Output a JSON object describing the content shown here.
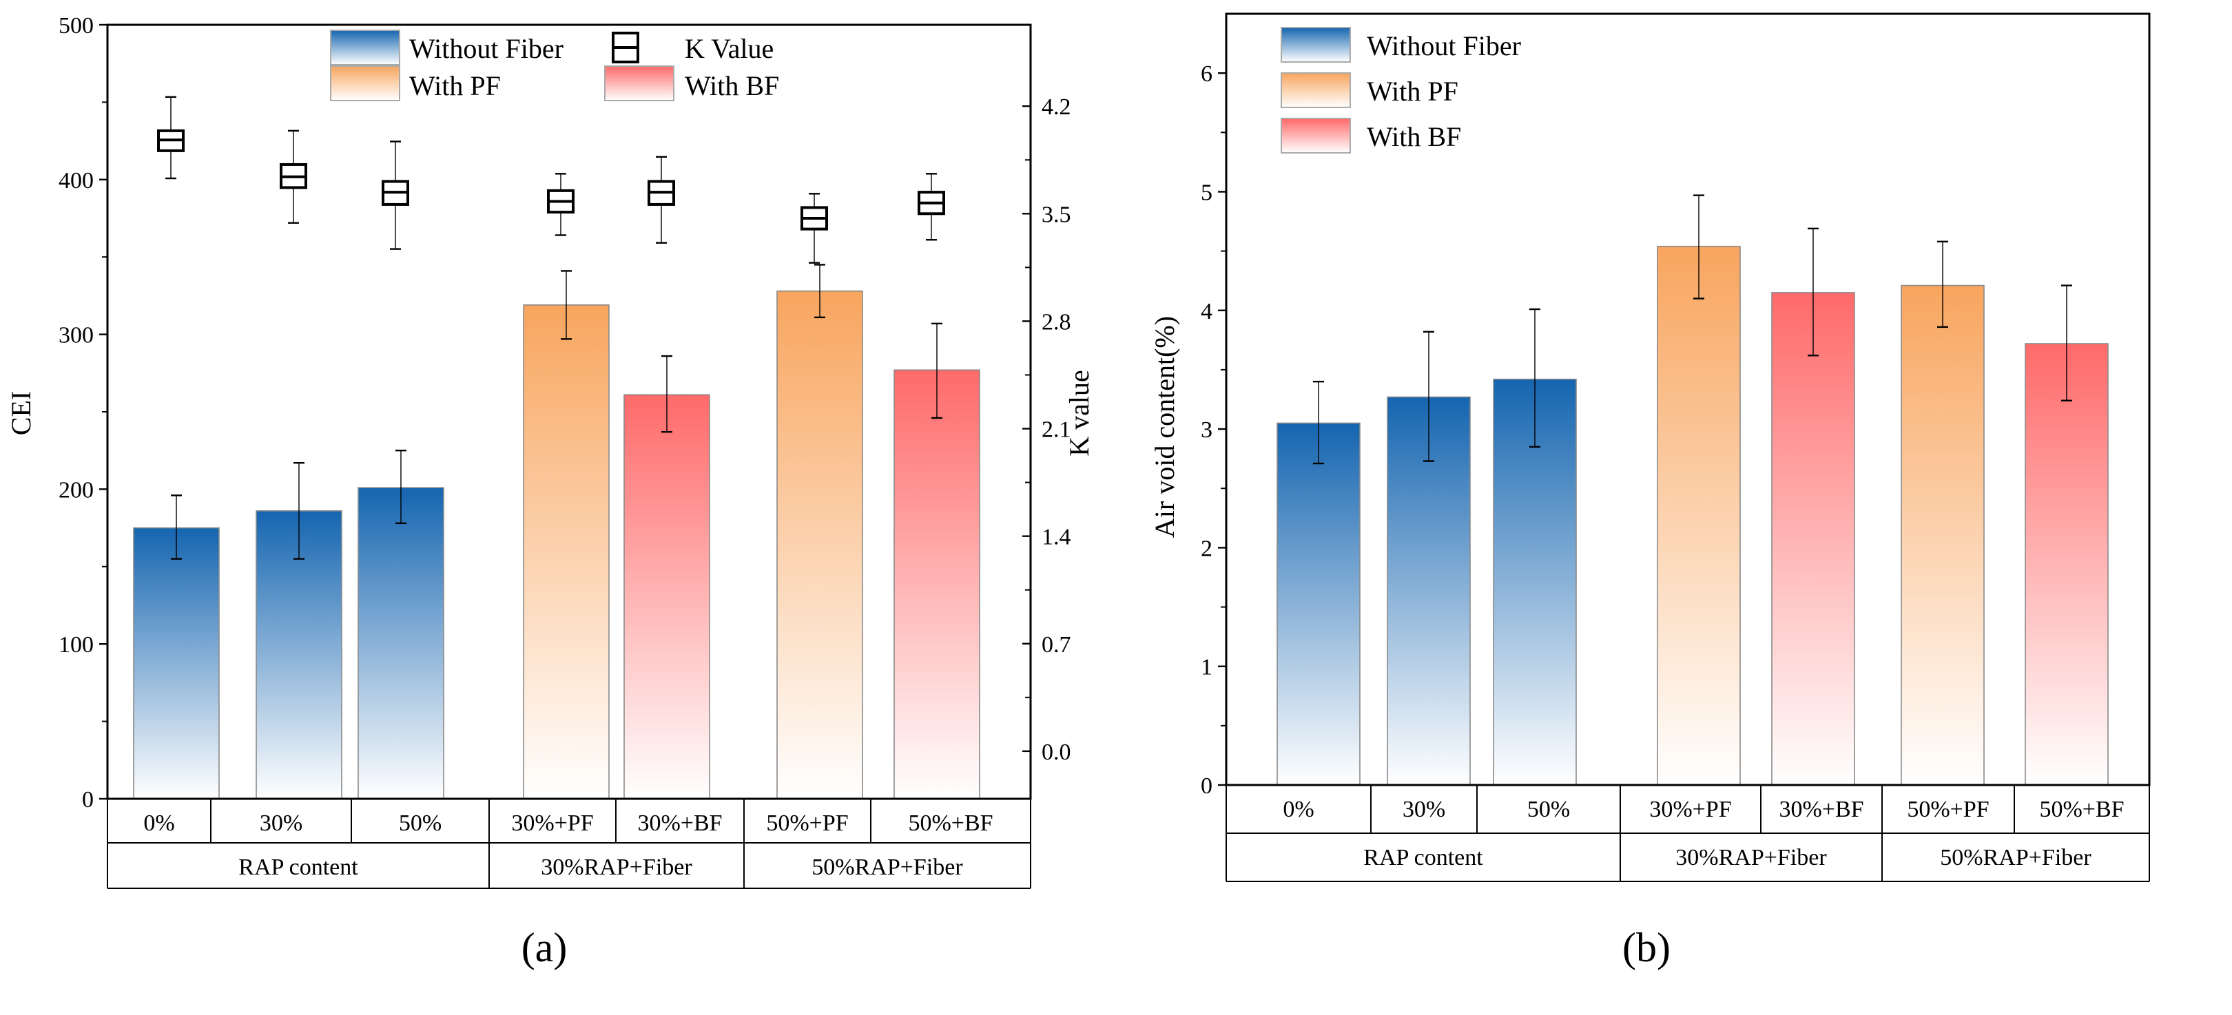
{
  "colors": {
    "without_fiber": "#1565b0",
    "with_pf": "#f8a55e",
    "with_bf": "#ff6a6a"
  },
  "chart_data": [
    {
      "type": "bar",
      "caption": "(a)",
      "ylabel": "CEI",
      "y2label": "K value",
      "ylim": [
        0,
        500
      ],
      "yticks": [
        0,
        100,
        200,
        300,
        400,
        500
      ],
      "y2lim": [
        -0.31,
        4.73
      ],
      "y2ticks": [
        "0.0",
        "0.7",
        "1.4",
        "2.1",
        "2.8",
        "3.5",
        "4.2"
      ],
      "categories": [
        "0%",
        "30%",
        "50%",
        "30%+PF",
        "30%+BF",
        "50%+PF",
        "50%+BF"
      ],
      "groups": [
        {
          "label": "RAP content",
          "span": 3
        },
        {
          "label": "30%RAP+Fiber",
          "span": 2
        },
        {
          "label": "50%RAP+Fiber",
          "span": 2
        }
      ],
      "legend": {
        "placement": "top-center",
        "entries": [
          "Without Fiber",
          "K Value",
          "With PF",
          "With BF"
        ]
      },
      "series_type": [
        "without_fiber",
        "without_fiber",
        "without_fiber",
        "with_pf",
        "with_bf",
        "with_pf",
        "with_bf"
      ],
      "values": [
        175,
        186,
        201,
        319,
        261,
        328,
        277
      ],
      "err_low": [
        155,
        155,
        178,
        297,
        237,
        311,
        246
      ],
      "err_high": [
        196,
        217,
        225,
        341,
        286,
        345,
        307
      ],
      "k_value": {
        "median": [
          3.98,
          3.74,
          3.64,
          3.58,
          3.64,
          3.47,
          3.57
        ],
        "q1": [
          3.91,
          3.67,
          3.56,
          3.51,
          3.56,
          3.4,
          3.5
        ],
        "q3": [
          4.04,
          3.82,
          3.71,
          3.65,
          3.71,
          3.54,
          3.64
        ],
        "min": [
          3.73,
          3.44,
          3.27,
          3.36,
          3.31,
          3.18,
          3.33
        ],
        "max": [
          4.26,
          4.04,
          3.97,
          3.76,
          3.87,
          3.63,
          3.76
        ]
      }
    },
    {
      "type": "bar",
      "caption": "(b)",
      "ylabel": "Air void content(%)",
      "ylim": [
        0,
        6.5
      ],
      "yticks": [
        0,
        1,
        2,
        3,
        4,
        5,
        6
      ],
      "categories": [
        "0%",
        "30%",
        "50%",
        "30%+PF",
        "30%+BF",
        "50%+PF",
        "50%+BF"
      ],
      "groups": [
        {
          "label": "RAP content",
          "span": 3
        },
        {
          "label": "30%RAP+Fiber",
          "span": 2
        },
        {
          "label": "50%RAP+Fiber",
          "span": 2
        }
      ],
      "legend": {
        "placement": "top-left",
        "entries": [
          "Without Fiber",
          "With PF",
          "With BF"
        ]
      },
      "series_type": [
        "without_fiber",
        "without_fiber",
        "without_fiber",
        "with_pf",
        "with_bf",
        "with_pf",
        "with_bf"
      ],
      "values": [
        3.05,
        3.27,
        3.42,
        4.54,
        4.15,
        4.21,
        3.72
      ],
      "err_low": [
        2.71,
        2.73,
        2.85,
        4.1,
        3.62,
        3.86,
        3.24
      ],
      "err_high": [
        3.4,
        3.82,
        4.01,
        4.97,
        4.69,
        4.58,
        4.21
      ]
    }
  ]
}
